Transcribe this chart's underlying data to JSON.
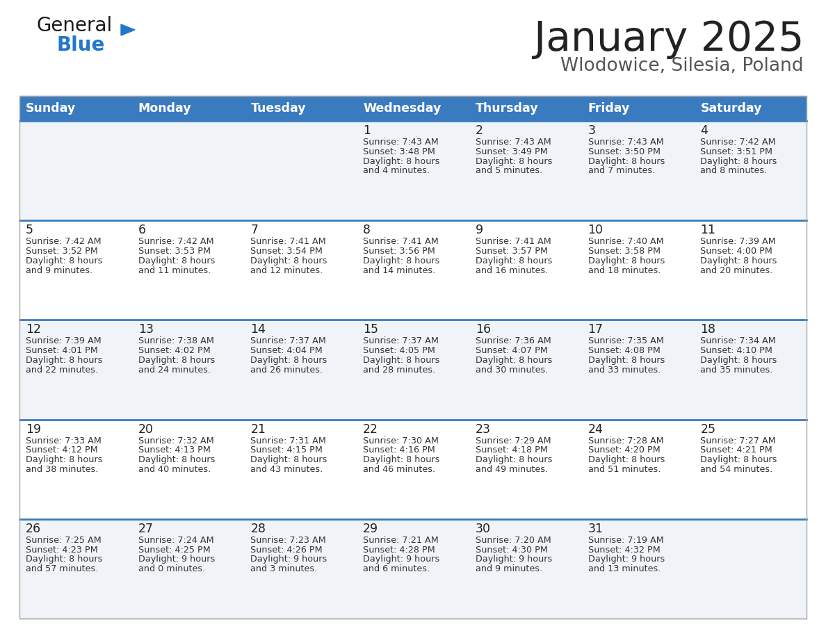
{
  "title": "January 2025",
  "subtitle": "Wlodowice, Silesia, Poland",
  "days_of_week": [
    "Sunday",
    "Monday",
    "Tuesday",
    "Wednesday",
    "Thursday",
    "Friday",
    "Saturday"
  ],
  "header_bg": "#3a7bbf",
  "header_text": "#ffffff",
  "row_bg_light": "#f0f4f8",
  "row_bg_white": "#ffffff",
  "cell_text": "#333333",
  "row_divider": "#3a7bbf",
  "title_color": "#222222",
  "subtitle_color": "#555555",
  "logo_general_color": "#1a1a1a",
  "logo_blue_color": "#2277cc",
  "calendar_data": [
    [
      {
        "day": null,
        "sunrise": null,
        "sunset": null,
        "daylight": null
      },
      {
        "day": null,
        "sunrise": null,
        "sunset": null,
        "daylight": null
      },
      {
        "day": null,
        "sunrise": null,
        "sunset": null,
        "daylight": null
      },
      {
        "day": 1,
        "sunrise": "7:43 AM",
        "sunset": "3:48 PM",
        "daylight_h": "8 hours",
        "daylight_m": "and 4 minutes."
      },
      {
        "day": 2,
        "sunrise": "7:43 AM",
        "sunset": "3:49 PM",
        "daylight_h": "8 hours",
        "daylight_m": "and 5 minutes."
      },
      {
        "day": 3,
        "sunrise": "7:43 AM",
        "sunset": "3:50 PM",
        "daylight_h": "8 hours",
        "daylight_m": "and 7 minutes."
      },
      {
        "day": 4,
        "sunrise": "7:42 AM",
        "sunset": "3:51 PM",
        "daylight_h": "8 hours",
        "daylight_m": "and 8 minutes."
      }
    ],
    [
      {
        "day": 5,
        "sunrise": "7:42 AM",
        "sunset": "3:52 PM",
        "daylight_h": "8 hours",
        "daylight_m": "and 9 minutes."
      },
      {
        "day": 6,
        "sunrise": "7:42 AM",
        "sunset": "3:53 PM",
        "daylight_h": "8 hours",
        "daylight_m": "and 11 minutes."
      },
      {
        "day": 7,
        "sunrise": "7:41 AM",
        "sunset": "3:54 PM",
        "daylight_h": "8 hours",
        "daylight_m": "and 12 minutes."
      },
      {
        "day": 8,
        "sunrise": "7:41 AM",
        "sunset": "3:56 PM",
        "daylight_h": "8 hours",
        "daylight_m": "and 14 minutes."
      },
      {
        "day": 9,
        "sunrise": "7:41 AM",
        "sunset": "3:57 PM",
        "daylight_h": "8 hours",
        "daylight_m": "and 16 minutes."
      },
      {
        "day": 10,
        "sunrise": "7:40 AM",
        "sunset": "3:58 PM",
        "daylight_h": "8 hours",
        "daylight_m": "and 18 minutes."
      },
      {
        "day": 11,
        "sunrise": "7:39 AM",
        "sunset": "4:00 PM",
        "daylight_h": "8 hours",
        "daylight_m": "and 20 minutes."
      }
    ],
    [
      {
        "day": 12,
        "sunrise": "7:39 AM",
        "sunset": "4:01 PM",
        "daylight_h": "8 hours",
        "daylight_m": "and 22 minutes."
      },
      {
        "day": 13,
        "sunrise": "7:38 AM",
        "sunset": "4:02 PM",
        "daylight_h": "8 hours",
        "daylight_m": "and 24 minutes."
      },
      {
        "day": 14,
        "sunrise": "7:37 AM",
        "sunset": "4:04 PM",
        "daylight_h": "8 hours",
        "daylight_m": "and 26 minutes."
      },
      {
        "day": 15,
        "sunrise": "7:37 AM",
        "sunset": "4:05 PM",
        "daylight_h": "8 hours",
        "daylight_m": "and 28 minutes."
      },
      {
        "day": 16,
        "sunrise": "7:36 AM",
        "sunset": "4:07 PM",
        "daylight_h": "8 hours",
        "daylight_m": "and 30 minutes."
      },
      {
        "day": 17,
        "sunrise": "7:35 AM",
        "sunset": "4:08 PM",
        "daylight_h": "8 hours",
        "daylight_m": "and 33 minutes."
      },
      {
        "day": 18,
        "sunrise": "7:34 AM",
        "sunset": "4:10 PM",
        "daylight_h": "8 hours",
        "daylight_m": "and 35 minutes."
      }
    ],
    [
      {
        "day": 19,
        "sunrise": "7:33 AM",
        "sunset": "4:12 PM",
        "daylight_h": "8 hours",
        "daylight_m": "and 38 minutes."
      },
      {
        "day": 20,
        "sunrise": "7:32 AM",
        "sunset": "4:13 PM",
        "daylight_h": "8 hours",
        "daylight_m": "and 40 minutes."
      },
      {
        "day": 21,
        "sunrise": "7:31 AM",
        "sunset": "4:15 PM",
        "daylight_h": "8 hours",
        "daylight_m": "and 43 minutes."
      },
      {
        "day": 22,
        "sunrise": "7:30 AM",
        "sunset": "4:16 PM",
        "daylight_h": "8 hours",
        "daylight_m": "and 46 minutes."
      },
      {
        "day": 23,
        "sunrise": "7:29 AM",
        "sunset": "4:18 PM",
        "daylight_h": "8 hours",
        "daylight_m": "and 49 minutes."
      },
      {
        "day": 24,
        "sunrise": "7:28 AM",
        "sunset": "4:20 PM",
        "daylight_h": "8 hours",
        "daylight_m": "and 51 minutes."
      },
      {
        "day": 25,
        "sunrise": "7:27 AM",
        "sunset": "4:21 PM",
        "daylight_h": "8 hours",
        "daylight_m": "and 54 minutes."
      }
    ],
    [
      {
        "day": 26,
        "sunrise": "7:25 AM",
        "sunset": "4:23 PM",
        "daylight_h": "8 hours",
        "daylight_m": "and 57 minutes."
      },
      {
        "day": 27,
        "sunrise": "7:24 AM",
        "sunset": "4:25 PM",
        "daylight_h": "9 hours",
        "daylight_m": "and 0 minutes."
      },
      {
        "day": 28,
        "sunrise": "7:23 AM",
        "sunset": "4:26 PM",
        "daylight_h": "9 hours",
        "daylight_m": "and 3 minutes."
      },
      {
        "day": 29,
        "sunrise": "7:21 AM",
        "sunset": "4:28 PM",
        "daylight_h": "9 hours",
        "daylight_m": "and 6 minutes."
      },
      {
        "day": 30,
        "sunrise": "7:20 AM",
        "sunset": "4:30 PM",
        "daylight_h": "9 hours",
        "daylight_m": "and 9 minutes."
      },
      {
        "day": 31,
        "sunrise": "7:19 AM",
        "sunset": "4:32 PM",
        "daylight_h": "9 hours",
        "daylight_m": "and 13 minutes."
      },
      {
        "day": null,
        "sunrise": null,
        "sunset": null,
        "daylight_h": null,
        "daylight_m": null
      }
    ]
  ]
}
